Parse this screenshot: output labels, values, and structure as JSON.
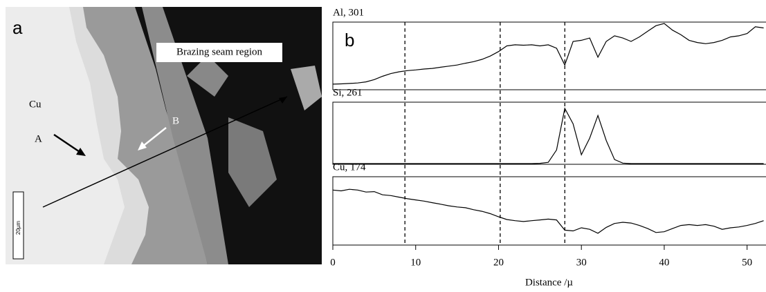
{
  "panel_a": {
    "label": "a",
    "region_label": "Brazing seam region",
    "cu_label": "Cu",
    "point_a": "A",
    "point_b": "B",
    "scale_bar": "20µm"
  },
  "chart_data": {
    "type": "line",
    "panel_label": "b",
    "x_label": "Distance /µ",
    "x": [
      0,
      1,
      2,
      3,
      4,
      5,
      6,
      7,
      8,
      9,
      10,
      11,
      12,
      13,
      14,
      15,
      16,
      17,
      18,
      19,
      20,
      21,
      22,
      23,
      24,
      25,
      26,
      27,
      28,
      29,
      30,
      31,
      32,
      33,
      34,
      35,
      36,
      37,
      38,
      39,
      40,
      41,
      42,
      43,
      44,
      45,
      46,
      47,
      48,
      49,
      50,
      51,
      52
    ],
    "xlim": [
      0,
      52.2
    ],
    "xticks": [
      0,
      10,
      20,
      30,
      40,
      50
    ],
    "markers": [
      8.7,
      20.2,
      28
    ],
    "series": [
      {
        "name": "Al, 301",
        "color": "#000000",
        "ylim": [
          0,
          301
        ],
        "values": [
          25,
          26,
          28,
          30,
          35,
          45,
          60,
          72,
          80,
          85,
          88,
          92,
          95,
          100,
          105,
          110,
          118,
          125,
          135,
          150,
          170,
          195,
          200,
          198,
          200,
          195,
          200,
          185,
          110,
          215,
          220,
          230,
          145,
          215,
          240,
          230,
          215,
          235,
          260,
          285,
          295,
          265,
          245,
          220,
          210,
          205,
          210,
          220,
          235,
          240,
          250,
          280,
          275
        ]
      },
      {
        "name": "Si, 261",
        "color": "#000000",
        "ylim": [
          0,
          261
        ],
        "values": [
          3,
          3,
          3,
          3,
          3,
          3,
          3,
          3,
          3,
          3,
          3,
          3,
          3,
          3,
          3,
          3,
          3,
          3,
          3,
          3,
          3,
          3,
          3,
          3,
          3,
          4,
          8,
          60,
          235,
          170,
          40,
          110,
          205,
          100,
          20,
          5,
          3,
          3,
          3,
          3,
          3,
          3,
          3,
          3,
          3,
          3,
          3,
          3,
          3,
          3,
          3,
          3,
          3
        ]
      },
      {
        "name": "Cu, 174",
        "color": "#000000",
        "ylim": [
          0,
          174
        ],
        "values": [
          140,
          138,
          142,
          140,
          135,
          136,
          128,
          126,
          122,
          118,
          115,
          112,
          108,
          104,
          100,
          97,
          95,
          90,
          86,
          80,
          72,
          65,
          62,
          60,
          62,
          64,
          66,
          64,
          38,
          36,
          44,
          40,
          30,
          45,
          55,
          58,
          56,
          50,
          42,
          32,
          34,
          42,
          50,
          52,
          50,
          52,
          48,
          40,
          44,
          46,
          50,
          55,
          62
        ]
      }
    ]
  }
}
